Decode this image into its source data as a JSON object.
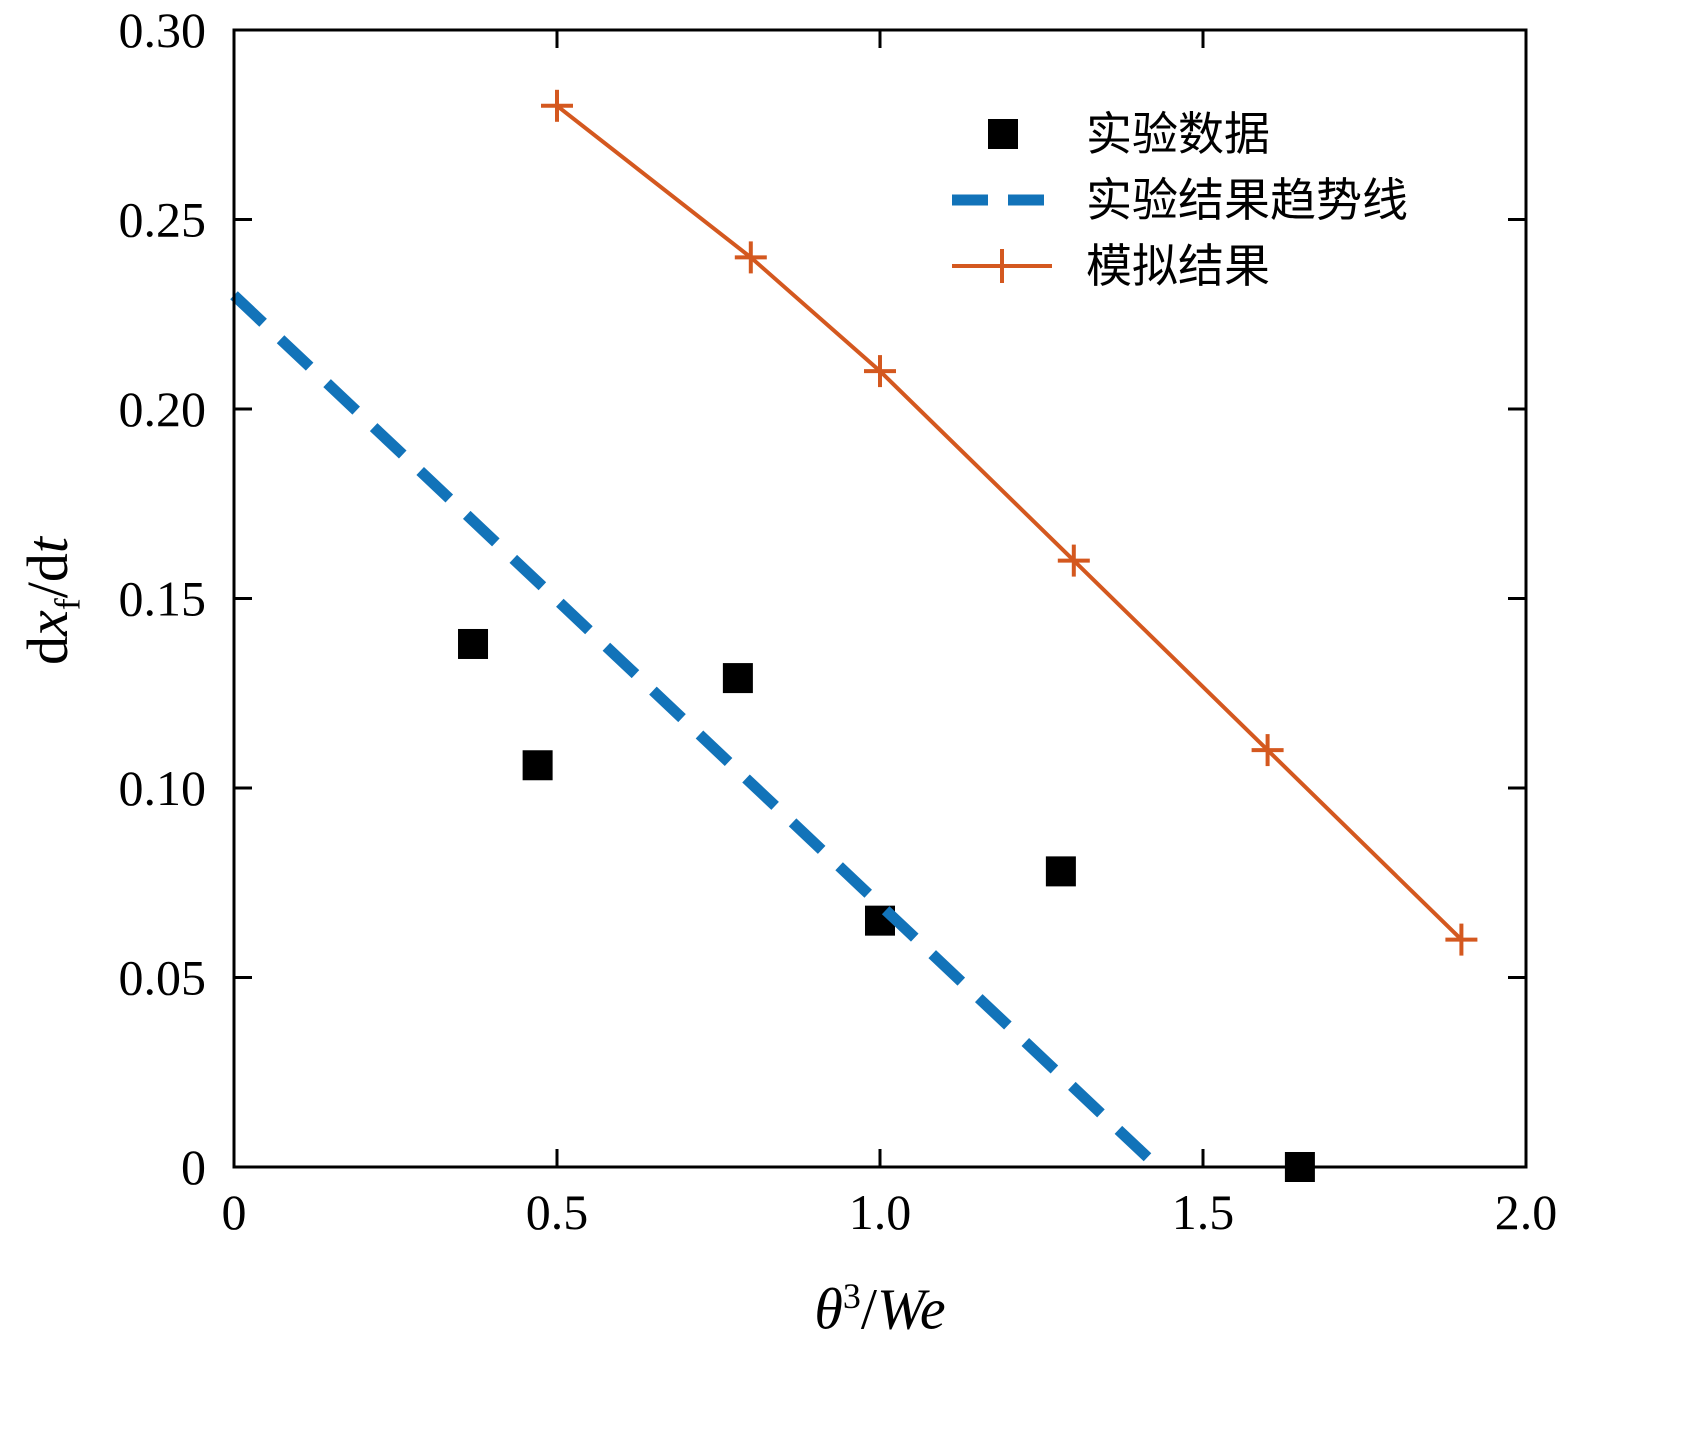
{
  "figure": {
    "background": "#ffffff",
    "axis_color": "#000000"
  },
  "axes": {
    "ylabel_parts": {
      "d1": "d",
      "x": "x",
      "sub_f": "f",
      "d2": "/d",
      "t": "t"
    },
    "xlabel_parts": {
      "theta": "θ",
      "sup": "3",
      "slash": "/",
      "we": "We"
    }
  },
  "chart_data": {
    "type": "scatter",
    "title": "",
    "xlabel": "θ³/We",
    "ylabel": "dxf/dt",
    "xlim": [
      0,
      2.0
    ],
    "ylim": [
      0,
      0.3
    ],
    "xticks": [
      0,
      0.5,
      1.0,
      1.5,
      2.0
    ],
    "xtick_labels": [
      "0",
      "0.5",
      "1.0",
      "1.5",
      "2.0"
    ],
    "yticks": [
      0,
      0.05,
      0.1,
      0.15,
      0.2,
      0.25,
      0.3
    ],
    "ytick_labels": [
      "0",
      "0.05",
      "0.10",
      "0.15",
      "0.20",
      "0.25",
      "0.30"
    ],
    "grid": false,
    "legend": {
      "position": "upper-right",
      "frame": false
    },
    "series": [
      {
        "name": "实验数据",
        "type": "scatter",
        "marker": "square",
        "color": "#000000",
        "points": [
          [
            0.37,
            0.138
          ],
          [
            0.47,
            0.106
          ],
          [
            0.78,
            0.129
          ],
          [
            1.0,
            0.065
          ],
          [
            1.28,
            0.078
          ],
          [
            1.65,
            0.0
          ]
        ]
      },
      {
        "name": "实验结果趋势线",
        "type": "line",
        "style": "dashed",
        "color": "#1273b9",
        "points": [
          [
            0,
            0.23
          ],
          [
            1.43,
            0
          ]
        ]
      },
      {
        "name": "模拟结果",
        "type": "line+marker",
        "style": "solid",
        "marker": "plus",
        "color": "#d4581f",
        "points": [
          [
            0.5,
            0.28
          ],
          [
            0.8,
            0.24
          ],
          [
            1.0,
            0.21
          ],
          [
            1.3,
            0.16
          ],
          [
            1.6,
            0.11
          ],
          [
            1.9,
            0.06
          ]
        ]
      }
    ]
  }
}
